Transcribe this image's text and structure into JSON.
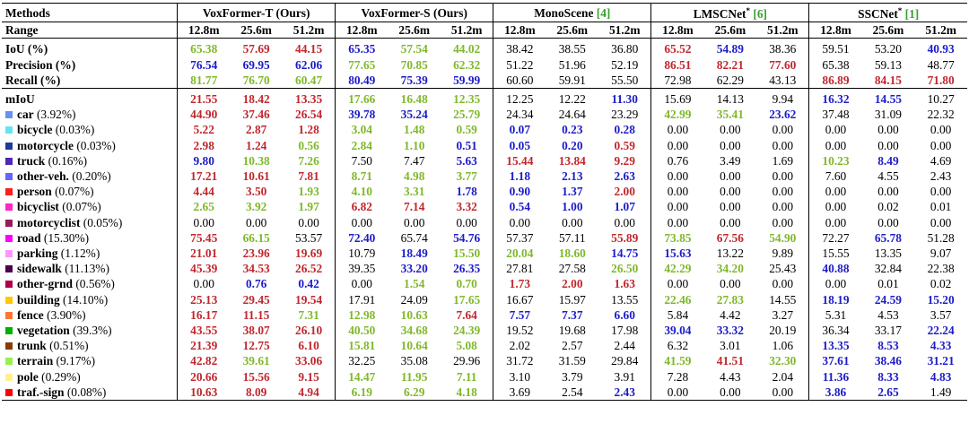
{
  "header": {
    "methods_label": "Methods",
    "range_label": "Range",
    "groups": [
      {
        "name": "VoxFormer-T (Ours)",
        "cite": "",
        "star": ""
      },
      {
        "name": "VoxFormer-S (Ours)",
        "cite": "",
        "star": ""
      },
      {
        "name": "MonoScene",
        "cite": "[4]",
        "star": ""
      },
      {
        "name": "LMSCNet",
        "cite": "[6]",
        "star": "*"
      },
      {
        "name": "SSCNet",
        "cite": "[1]",
        "star": "*"
      }
    ],
    "ranges": [
      "12.8m",
      "25.6m",
      "51.2m"
    ]
  },
  "metric_rows": [
    {
      "label": "IoU (%)",
      "values": [
        "65.38",
        "57.69",
        "44.15",
        "65.35",
        "57.54",
        "44.02",
        "38.42",
        "38.55",
        "36.80",
        "65.52",
        "54.89",
        "38.36",
        "59.51",
        "53.20",
        "40.93"
      ],
      "styles": [
        "g",
        "r",
        "r",
        "b",
        "g",
        "g",
        "",
        "",
        "",
        "r",
        "b",
        "",
        "",
        "",
        "b"
      ]
    },
    {
      "label": "Precision (%)",
      "values": [
        "76.54",
        "69.95",
        "62.06",
        "77.65",
        "70.85",
        "62.32",
        "51.22",
        "51.96",
        "52.19",
        "86.51",
        "82.21",
        "77.60",
        "65.38",
        "59.13",
        "48.77"
      ],
      "styles": [
        "b",
        "b",
        "b",
        "g",
        "g",
        "g",
        "",
        "",
        "",
        "r",
        "r",
        "r",
        "",
        "",
        ""
      ]
    },
    {
      "label": "Recall (%)",
      "values": [
        "81.77",
        "76.70",
        "60.47",
        "80.49",
        "75.39",
        "59.99",
        "60.60",
        "59.91",
        "55.50",
        "72.98",
        "62.29",
        "43.13",
        "86.89",
        "84.15",
        "71.80"
      ],
      "styles": [
        "g",
        "g",
        "g",
        "b",
        "b",
        "b",
        "",
        "",
        "",
        "",
        "",
        "",
        "r",
        "r",
        "r"
      ]
    }
  ],
  "class_rows": [
    {
      "label": "mIoU",
      "pct": "",
      "color": "",
      "values": [
        "21.55",
        "18.42",
        "13.35",
        "17.66",
        "16.48",
        "12.35",
        "12.25",
        "12.22",
        "11.30",
        "15.69",
        "14.13",
        "9.94",
        "16.32",
        "14.55",
        "10.27"
      ],
      "styles": [
        "r",
        "r",
        "r",
        "g",
        "g",
        "g",
        "",
        "",
        "b",
        "",
        "",
        "",
        "b",
        "b",
        ""
      ]
    },
    {
      "label": "car",
      "pct": "(3.92%)",
      "color": "#6495ed",
      "values": [
        "44.90",
        "37.46",
        "26.54",
        "39.78",
        "35.24",
        "25.79",
        "24.34",
        "24.64",
        "23.29",
        "42.99",
        "35.41",
        "23.62",
        "37.48",
        "31.09",
        "22.32"
      ],
      "styles": [
        "r",
        "r",
        "r",
        "b",
        "b",
        "g",
        "",
        "",
        "",
        "g",
        "g",
        "b",
        "",
        "",
        ""
      ]
    },
    {
      "label": "bicycle",
      "pct": "(0.03%)",
      "color": "#64e5f0",
      "values": [
        "5.22",
        "2.87",
        "1.28",
        "3.04",
        "1.48",
        "0.59",
        "0.07",
        "0.23",
        "0.28",
        "0.00",
        "0.00",
        "0.00",
        "0.00",
        "0.00",
        "0.00"
      ],
      "styles": [
        "r",
        "r",
        "r",
        "g",
        "g",
        "g",
        "b",
        "b",
        "b",
        "",
        "",
        "",
        "",
        "",
        ""
      ]
    },
    {
      "label": "motorcycle",
      "pct": "(0.03%)",
      "color": "#1e3c96",
      "values": [
        "2.98",
        "1.24",
        "0.56",
        "2.84",
        "1.10",
        "0.51",
        "0.05",
        "0.20",
        "0.59",
        "0.00",
        "0.00",
        "0.00",
        "0.00",
        "0.00",
        "0.00"
      ],
      "styles": [
        "r",
        "r",
        "g",
        "g",
        "g",
        "b",
        "b",
        "b",
        "r",
        "",
        "",
        "",
        "",
        "",
        ""
      ]
    },
    {
      "label": "truck",
      "pct": "(0.16%)",
      "color": "#5028b4",
      "values": [
        "9.80",
        "10.38",
        "7.26",
        "7.50",
        "7.47",
        "5.63",
        "15.44",
        "13.84",
        "9.29",
        "0.76",
        "3.49",
        "1.69",
        "10.23",
        "8.49",
        "4.69"
      ],
      "styles": [
        "b",
        "g",
        "g",
        "",
        "",
        "b",
        "r",
        "r",
        "r",
        "",
        "",
        "",
        "g",
        "b",
        ""
      ]
    },
    {
      "label": "other-veh.",
      "pct": "(0.20%)",
      "color": "#6464ff",
      "values": [
        "17.21",
        "10.61",
        "7.81",
        "8.71",
        "4.98",
        "3.77",
        "1.18",
        "2.13",
        "2.63",
        "0.00",
        "0.00",
        "0.00",
        "7.60",
        "4.55",
        "2.43"
      ],
      "styles": [
        "r",
        "r",
        "r",
        "g",
        "g",
        "g",
        "b",
        "b",
        "b",
        "",
        "",
        "",
        "",
        "",
        ""
      ]
    },
    {
      "label": "person",
      "pct": "(0.07%)",
      "color": "#ff1e1e",
      "values": [
        "4.44",
        "3.50",
        "1.93",
        "4.10",
        "3.31",
        "1.78",
        "0.90",
        "1.37",
        "2.00",
        "0.00",
        "0.00",
        "0.00",
        "0.00",
        "0.00",
        "0.00"
      ],
      "styles": [
        "r",
        "r",
        "g",
        "g",
        "g",
        "b",
        "b",
        "b",
        "r",
        "",
        "",
        "",
        "",
        "",
        ""
      ]
    },
    {
      "label": "bicyclist",
      "pct": "(0.07%)",
      "color": "#ff28c8",
      "values": [
        "2.65",
        "3.92",
        "1.97",
        "6.82",
        "7.14",
        "3.32",
        "0.54",
        "1.00",
        "1.07",
        "0.00",
        "0.00",
        "0.00",
        "0.00",
        "0.02",
        "0.01"
      ],
      "styles": [
        "g",
        "g",
        "g",
        "r",
        "r",
        "r",
        "b",
        "b",
        "b",
        "",
        "",
        "",
        "",
        "",
        ""
      ]
    },
    {
      "label": "motorcyclist",
      "pct": "(0.05%)",
      "color": "#961e5a",
      "values": [
        "0.00",
        "0.00",
        "0.00",
        "0.00",
        "0.00",
        "0.00",
        "0.00",
        "0.00",
        "0.00",
        "0.00",
        "0.00",
        "0.00",
        "0.00",
        "0.00",
        "0.00"
      ],
      "styles": [
        "",
        "",
        "",
        "",
        "",
        "",
        "",
        "",
        "",
        "",
        "",
        "",
        "",
        "",
        ""
      ]
    },
    {
      "label": "road",
      "pct": "(15.30%)",
      "color": "#ff00ff",
      "values": [
        "75.45",
        "66.15",
        "53.57",
        "72.40",
        "65.74",
        "54.76",
        "57.37",
        "57.11",
        "55.89",
        "73.85",
        "67.56",
        "54.90",
        "72.27",
        "65.78",
        "51.28"
      ],
      "styles": [
        "r",
        "g",
        "",
        "b",
        "",
        "b",
        "",
        "",
        "r",
        "g",
        "r",
        "g",
        "",
        "b",
        ""
      ]
    },
    {
      "label": "parking",
      "pct": "(1.12%)",
      "color": "#ff96ff",
      "values": [
        "21.01",
        "23.96",
        "19.69",
        "10.79",
        "18.49",
        "15.50",
        "20.04",
        "18.60",
        "14.75",
        "15.63",
        "13.22",
        "9.89",
        "15.55",
        "13.35",
        "9.07"
      ],
      "styles": [
        "r",
        "r",
        "r",
        "",
        "b",
        "g",
        "g",
        "g",
        "b",
        "b",
        "",
        "",
        "",
        "",
        ""
      ]
    },
    {
      "label": "sidewalk",
      "pct": "(11.13%)",
      "color": "#4b004b",
      "values": [
        "45.39",
        "34.53",
        "26.52",
        "39.35",
        "33.20",
        "26.35",
        "27.81",
        "27.58",
        "26.50",
        "42.29",
        "34.20",
        "25.43",
        "40.88",
        "32.84",
        "22.38"
      ],
      "styles": [
        "r",
        "r",
        "r",
        "",
        "b",
        "b",
        "",
        "",
        "g",
        "g",
        "g",
        "",
        "b",
        "",
        ""
      ]
    },
    {
      "label": "other-grnd",
      "pct": "(0.56%)",
      "color": "#af004b",
      "values": [
        "0.00",
        "0.76",
        "0.42",
        "0.00",
        "1.54",
        "0.70",
        "1.73",
        "2.00",
        "1.63",
        "0.00",
        "0.00",
        "0.00",
        "0.00",
        "0.01",
        "0.02"
      ],
      "styles": [
        "",
        "b",
        "b",
        "",
        "g",
        "g",
        "r",
        "r",
        "r",
        "",
        "",
        "",
        "",
        "",
        ""
      ]
    },
    {
      "label": "building",
      "pct": "(14.10%)",
      "color": "#ffc800",
      "values": [
        "25.13",
        "29.45",
        "19.54",
        "17.91",
        "24.09",
        "17.65",
        "16.67",
        "15.97",
        "13.55",
        "22.46",
        "27.83",
        "14.55",
        "18.19",
        "24.59",
        "15.20"
      ],
      "styles": [
        "r",
        "r",
        "r",
        "",
        "",
        "g",
        "",
        "",
        "",
        "g",
        "g",
        "",
        "b",
        "b",
        "b"
      ]
    },
    {
      "label": "fence",
      "pct": "(3.90%)",
      "color": "#ff7832",
      "values": [
        "16.17",
        "11.15",
        "7.31",
        "12.98",
        "10.63",
        "7.64",
        "7.57",
        "7.37",
        "6.60",
        "5.84",
        "4.42",
        "3.27",
        "5.31",
        "4.53",
        "3.57"
      ],
      "styles": [
        "r",
        "r",
        "g",
        "g",
        "g",
        "r",
        "b",
        "b",
        "b",
        "",
        "",
        "",
        "",
        "",
        ""
      ]
    },
    {
      "label": "vegetation",
      "pct": "(39.3%)",
      "color": "#00af00",
      "values": [
        "43.55",
        "38.07",
        "26.10",
        "40.50",
        "34.68",
        "24.39",
        "19.52",
        "19.68",
        "17.98",
        "39.04",
        "33.32",
        "20.19",
        "36.34",
        "33.17",
        "22.24"
      ],
      "styles": [
        "r",
        "r",
        "r",
        "g",
        "g",
        "g",
        "",
        "",
        "",
        "b",
        "b",
        "",
        "",
        "",
        "b"
      ]
    },
    {
      "label": "trunk",
      "pct": "(0.51%)",
      "color": "#873c00",
      "values": [
        "21.39",
        "12.75",
        "6.10",
        "15.81",
        "10.64",
        "5.08",
        "2.02",
        "2.57",
        "2.44",
        "6.32",
        "3.01",
        "1.06",
        "13.35",
        "8.53",
        "4.33"
      ],
      "styles": [
        "r",
        "r",
        "r",
        "g",
        "g",
        "g",
        "",
        "",
        "",
        "",
        "",
        "",
        "b",
        "b",
        "b"
      ]
    },
    {
      "label": "terrain",
      "pct": "(9.17%)",
      "color": "#96f050",
      "values": [
        "42.82",
        "39.61",
        "33.06",
        "32.25",
        "35.08",
        "29.96",
        "31.72",
        "31.59",
        "29.84",
        "41.59",
        "41.51",
        "32.30",
        "37.61",
        "38.46",
        "31.21"
      ],
      "styles": [
        "r",
        "g",
        "r",
        "",
        "",
        "",
        "",
        "",
        "",
        "g",
        "r",
        "g",
        "b",
        "b",
        "b"
      ]
    },
    {
      "label": "pole",
      "pct": "(0.29%)",
      "color": "#fff096",
      "values": [
        "20.66",
        "15.56",
        "9.15",
        "14.47",
        "11.95",
        "7.11",
        "3.10",
        "3.79",
        "3.91",
        "7.28",
        "4.43",
        "2.04",
        "11.36",
        "8.33",
        "4.83"
      ],
      "styles": [
        "r",
        "r",
        "r",
        "g",
        "g",
        "g",
        "",
        "",
        "",
        "",
        "",
        "",
        "b",
        "b",
        "b"
      ]
    },
    {
      "label": "traf.-sign",
      "pct": "(0.08%)",
      "color": "#ff0000",
      "values": [
        "10.63",
        "8.09",
        "4.94",
        "6.19",
        "6.29",
        "4.18",
        "3.69",
        "2.54",
        "2.43",
        "0.00",
        "0.00",
        "0.00",
        "3.86",
        "2.65",
        "1.49"
      ],
      "styles": [
        "r",
        "r",
        "r",
        "g",
        "g",
        "g",
        "",
        "",
        "b",
        "",
        "",
        "",
        "b",
        "b",
        ""
      ]
    }
  ]
}
